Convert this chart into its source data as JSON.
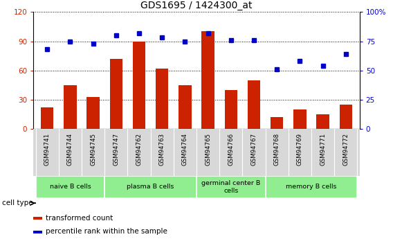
{
  "title": "GDS1695 / 1424300_at",
  "samples": [
    "GSM94741",
    "GSM94744",
    "GSM94745",
    "GSM94747",
    "GSM94762",
    "GSM94763",
    "GSM94764",
    "GSM94765",
    "GSM94766",
    "GSM94767",
    "GSM94768",
    "GSM94769",
    "GSM94771",
    "GSM94772"
  ],
  "transformed_count": [
    22,
    45,
    33,
    72,
    90,
    62,
    45,
    100,
    40,
    50,
    12,
    20,
    15,
    25
  ],
  "percentile_rank": [
    68,
    75,
    73,
    80,
    82,
    78,
    75,
    82,
    76,
    76,
    51,
    58,
    54,
    64
  ],
  "cell_group_labels": [
    "naive B cells",
    "plasma B cells",
    "germinal center B\ncells",
    "memory B cells"
  ],
  "cell_group_ranges": [
    [
      0,
      2
    ],
    [
      3,
      6
    ],
    [
      7,
      9
    ],
    [
      10,
      13
    ]
  ],
  "bar_color": "#cc2200",
  "dot_color": "#0000cc",
  "ylim_left": [
    0,
    120
  ],
  "ylim_right": [
    0,
    100
  ],
  "yticks_left": [
    0,
    30,
    60,
    90,
    120
  ],
  "ytick_labels_left": [
    "0",
    "30",
    "60",
    "90",
    "120"
  ],
  "yticks_right": [
    0,
    25,
    50,
    75,
    100
  ],
  "ytick_labels_right": [
    "0",
    "25",
    "50",
    "75",
    "100%"
  ],
  "green_color": "#90ee90",
  "gray_color": "#d8d8d8",
  "plot_bg": "white"
}
